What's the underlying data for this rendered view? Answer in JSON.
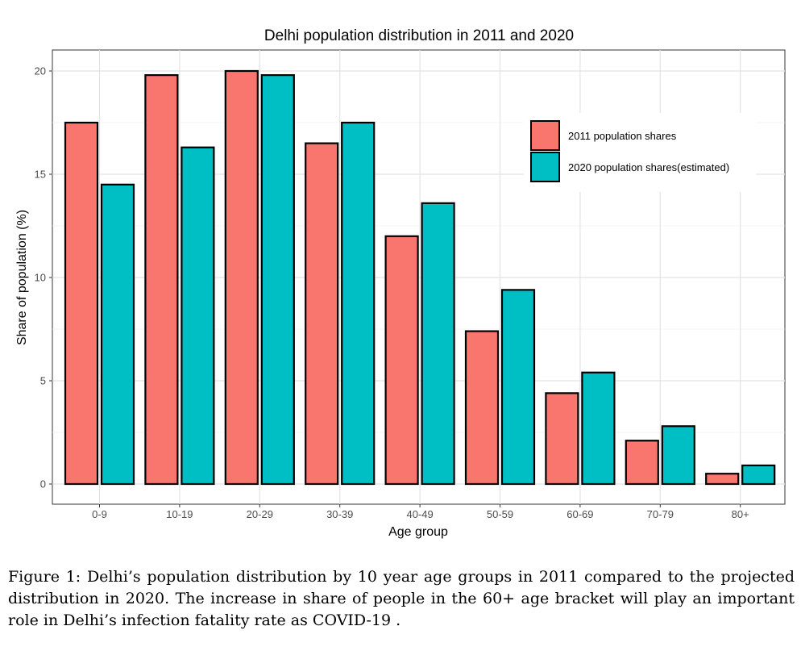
{
  "chart_data": {
    "type": "bar",
    "title": "Delhi population distribution in 2011 and 2020",
    "xlabel": "Age group",
    "ylabel": "Share of population (%)",
    "ylim": [
      0,
      20
    ],
    "yticks": [
      0,
      5,
      10,
      15,
      20
    ],
    "grid": true,
    "legend": "top-right",
    "categories": [
      "0-9",
      "10-19",
      "20-29",
      "30-39",
      "40-49",
      "50-59",
      "60-69",
      "70-79",
      "80+"
    ],
    "series": [
      {
        "name": "2011 population shares",
        "color": "#F8766D",
        "values": [
          17.5,
          19.8,
          20.0,
          16.5,
          12.0,
          7.4,
          4.4,
          2.1,
          0.5
        ]
      },
      {
        "name": "2020 population shares(estimated)",
        "color": "#00BFC4",
        "values": [
          14.5,
          16.3,
          19.8,
          17.5,
          13.6,
          9.4,
          5.4,
          2.8,
          0.9
        ]
      }
    ]
  },
  "caption": "Figure 1: Delhi’s population distribution by 10 year age groups in 2011 compared to the projected distribution in 2020. The increase in share of people in the 60+ age bracket will play an important role in Delhi’s infection fatality rate as COVID-19 ."
}
